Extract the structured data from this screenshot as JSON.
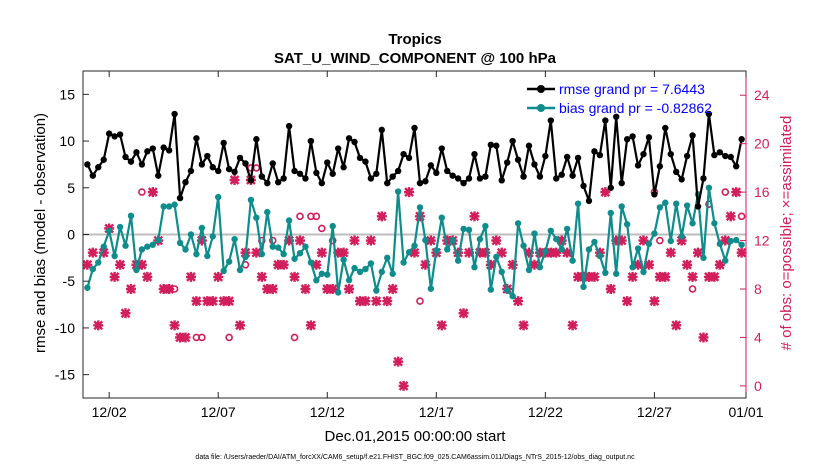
{
  "chart_data": {
    "type": "line",
    "title": "Tropics",
    "subtitle": "SAT_U_WIND_COMPONENT @ 100 hPa",
    "xlabel": "Dec.01,2015 00:00:00 start",
    "ylabel": "rmse and bias (model - observation)",
    "ylabel_right": "# of obs: o=possible; ×=assimilated",
    "footer": "data file: /Users/raeder/DAI/ATM_forcXX/CAM6_setup/f.e21.FHIST_BGC.f09_025.CAM6assim.011/Diags_NTrS_2015-12/obs_diag_output.nc",
    "xlim": [
      0.8,
      31.2
    ],
    "ylim": [
      -17.5,
      17.5
    ],
    "ylim_right": [
      -1,
      26
    ],
    "x_ticks": [
      2,
      7,
      12,
      17,
      22,
      27,
      32
    ],
    "x_tick_labels": [
      "12/02",
      "12/07",
      "12/12",
      "12/17",
      "12/22",
      "12/27",
      "01/01"
    ],
    "y_ticks": [
      -15,
      -10,
      -5,
      0,
      5,
      10,
      15
    ],
    "y_ticks_right": [
      0,
      4,
      8,
      12,
      16,
      20,
      24
    ],
    "legend": [
      {
        "label": "rmse grand pr = 7.6443",
        "color": "#000000"
      },
      {
        "label": "bias grand pr = -0.82862",
        "color": "#0f8c8c"
      }
    ],
    "legend_text_color": "#0000ff",
    "colors": {
      "rmse": "#000000",
      "bias": "#0f8c8c",
      "obs": "#d21e5a",
      "right_axis": "#d21e5a",
      "zero_line": "#bdbdbd"
    },
    "series": [
      {
        "name": "rmse",
        "x": [
          1.0,
          1.25,
          1.5,
          1.75,
          2.0,
          2.25,
          2.5,
          2.75,
          3.0,
          3.25,
          3.5,
          3.75,
          4.0,
          4.25,
          4.5,
          4.75,
          5.0,
          5.25,
          5.5,
          5.75,
          6.0,
          6.25,
          6.5,
          6.75,
          7.0,
          7.25,
          7.5,
          7.75,
          8.0,
          8.25,
          8.5,
          8.75,
          9.0,
          9.25,
          9.5,
          9.75,
          10.0,
          10.25,
          10.5,
          10.75,
          11.0,
          11.25,
          11.5,
          11.75,
          12.0,
          12.25,
          12.5,
          12.75,
          13.0,
          13.25,
          13.5,
          13.75,
          14.0,
          14.25,
          14.5,
          14.75,
          15.0,
          15.25,
          15.5,
          15.75,
          16.0,
          16.25,
          16.5,
          16.75,
          17.0,
          17.25,
          17.5,
          17.75,
          18.0,
          18.25,
          18.5,
          18.75,
          19.0,
          19.25,
          19.5,
          19.75,
          20.0,
          20.25,
          20.5,
          20.75,
          21.0,
          21.25,
          21.5,
          21.75,
          22.0,
          22.25,
          22.5,
          22.75,
          23.0,
          23.25,
          23.5,
          23.75,
          24.0,
          24.25,
          24.5,
          24.75,
          25.0,
          25.25,
          25.5,
          25.75,
          26.0,
          26.25,
          26.5,
          26.75,
          27.0,
          27.25,
          27.5,
          27.75,
          28.0,
          28.25,
          28.5,
          28.75,
          29.0,
          29.25,
          29.5,
          29.75,
          30.0,
          30.25,
          30.5,
          30.75,
          31.0
        ],
        "values": [
          7.5,
          6.3,
          7.2,
          8.0,
          10.8,
          10.5,
          10.7,
          8.3,
          7.8,
          8.8,
          7.5,
          8.9,
          9.2,
          6.3,
          9.3,
          9.0,
          12.9,
          3.9,
          5.6,
          6.8,
          10.3,
          7.5,
          8.4,
          7.2,
          6.8,
          9.8,
          7.0,
          6.7,
          8.2,
          7.6,
          5.8,
          10.2,
          6.2,
          5.5,
          7.6,
          5.6,
          6.0,
          11.6,
          6.8,
          6.5,
          6.0,
          10.0,
          6.6,
          5.5,
          7.7,
          6.5,
          9.2,
          7.2,
          10.3,
          9.9,
          8.2,
          7.8,
          6.0,
          6.5,
          11.2,
          5.5,
          6.2,
          6.8,
          8.6,
          8.2,
          11.4,
          5.5,
          5.7,
          7.4,
          6.6,
          9.2,
          6.8,
          6.3,
          6.0,
          5.5,
          6.0,
          8.6,
          6.0,
          6.2,
          9.6,
          9.5,
          5.8,
          7.7,
          10.0,
          8.0,
          6.2,
          9.5,
          7.5,
          6.2,
          8.4,
          12.2,
          6.0,
          6.4,
          8.3,
          6.3,
          8.2,
          5.2,
          3.6,
          8.9,
          8.5,
          12.2,
          5.0,
          12.6,
          5.5,
          10.2,
          10.5,
          7.4,
          8.6,
          10.4,
          4.3,
          7.3,
          11.4,
          8.6,
          6.7,
          5.9,
          8.4,
          10.6,
          3.0,
          6.0,
          12.9,
          8.5,
          8.8,
          8.4,
          8.3,
          7.3,
          10.2
        ]
      },
      {
        "name": "bias",
        "x": [
          1.0,
          1.25,
          1.5,
          1.75,
          2.0,
          2.25,
          2.5,
          2.75,
          3.0,
          3.25,
          3.5,
          3.75,
          4.0,
          4.25,
          4.5,
          4.75,
          5.0,
          5.25,
          5.5,
          5.75,
          6.0,
          6.25,
          6.5,
          6.75,
          7.0,
          7.25,
          7.5,
          7.75,
          8.0,
          8.25,
          8.5,
          8.75,
          9.0,
          9.25,
          9.5,
          9.75,
          10.0,
          10.25,
          10.5,
          10.75,
          11.0,
          11.25,
          11.5,
          11.75,
          12.0,
          12.25,
          12.5,
          12.75,
          13.0,
          13.25,
          13.5,
          13.75,
          14.0,
          14.25,
          14.5,
          14.75,
          15.0,
          15.25,
          15.5,
          15.75,
          16.0,
          16.25,
          16.5,
          16.75,
          17.0,
          17.25,
          17.5,
          17.75,
          18.0,
          18.25,
          18.5,
          18.75,
          19.0,
          19.25,
          19.5,
          19.75,
          20.0,
          20.25,
          20.5,
          20.75,
          21.0,
          21.25,
          21.5,
          21.75,
          22.0,
          22.25,
          22.5,
          22.75,
          23.0,
          23.25,
          23.5,
          23.75,
          24.0,
          24.25,
          24.5,
          24.75,
          25.0,
          25.25,
          25.5,
          25.75,
          26.0,
          26.25,
          26.5,
          26.75,
          27.0,
          27.25,
          27.5,
          27.75,
          28.0,
          28.25,
          28.5,
          28.75,
          29.0,
          29.25,
          29.5,
          29.75,
          30.0,
          30.25,
          30.5,
          30.75,
          31.0
        ],
        "values": [
          -5.7,
          -3.7,
          -3.0,
          -1.3,
          0.4,
          -2.3,
          0.8,
          -1.2,
          2.0,
          -3.8,
          -1.6,
          -1.3,
          -1.1,
          -0.6,
          3.0,
          3.0,
          3.2,
          -0.9,
          -1.6,
          0.0,
          -2.1,
          0.7,
          -2.3,
          -0.2,
          4.0,
          -3.9,
          -2.9,
          -0.5,
          -3.8,
          -2.4,
          3.7,
          1.8,
          -2.1,
          2.4,
          -1.3,
          -1.4,
          -2.1,
          1.5,
          -2.6,
          -2.0,
          -1.3,
          -3.0,
          -4.9,
          -4.2,
          -4.3,
          0.9,
          -6.2,
          -2.7,
          -4.9,
          -3.6,
          -4.0,
          -3.7,
          -3.1,
          -6.0,
          -4.0,
          -2.5,
          -4.2,
          4.6,
          -3.0,
          -1.9,
          -1.2,
          2.9,
          -0.6,
          -5.8,
          -1.7,
          1.8,
          -1.6,
          -0.6,
          -2.8,
          0.6,
          0.5,
          -3.5,
          -0.5,
          0.9,
          -5.9,
          -2.4,
          -4.0,
          -6.0,
          -6.6,
          1.2,
          -1.2,
          -3.8,
          0.1,
          -3.5,
          -1.8,
          0.4,
          -0.5,
          -1.6,
          0.6,
          -2.8,
          3.3,
          -5.6,
          -1.6,
          -0.8,
          -2.3,
          -4.1,
          2.3,
          -4.2,
          3.0,
          1.1,
          -3.5,
          -1.5,
          -4.0,
          -1.0,
          0.1,
          2.9,
          3.4,
          -0.7,
          3.3,
          -0.2,
          3.1,
          1.2,
          4.3,
          -2.5,
          5.0,
          1.2,
          -1.0,
          -2.8,
          -0.7,
          -0.6,
          -1.1
        ]
      },
      {
        "name": "obs assimilated",
        "axis": "right",
        "x": [
          1.0,
          1.25,
          1.5,
          1.75,
          2.0,
          2.25,
          2.5,
          2.75,
          3.0,
          3.25,
          3.5,
          3.75,
          4.0,
          4.25,
          4.5,
          4.75,
          5.0,
          5.25,
          5.5,
          5.75,
          6.0,
          6.25,
          6.5,
          6.75,
          7.0,
          7.25,
          7.5,
          7.75,
          8.0,
          8.25,
          8.5,
          8.75,
          9.0,
          9.25,
          9.5,
          9.75,
          10.0,
          10.25,
          10.5,
          10.75,
          11.0,
          11.25,
          11.5,
          11.75,
          12.0,
          12.25,
          12.5,
          12.75,
          13.0,
          13.25,
          13.5,
          13.75,
          14.0,
          14.25,
          14.5,
          14.75,
          15.0,
          15.25,
          15.5,
          15.75,
          16.0,
          16.25,
          16.5,
          16.75,
          17.0,
          17.25,
          17.5,
          17.75,
          18.0,
          18.25,
          18.5,
          18.75,
          19.0,
          19.25,
          19.5,
          19.75,
          20.0,
          20.25,
          20.5,
          20.75,
          21.0,
          21.25,
          21.5,
          21.75,
          22.0,
          22.25,
          22.5,
          22.75,
          23.0,
          23.25,
          23.5,
          23.75,
          24.0,
          24.25,
          24.5,
          24.75,
          25.0,
          25.25,
          25.5,
          25.75,
          26.0,
          26.25,
          26.5,
          26.75,
          27.0,
          27.25,
          27.5,
          27.75,
          28.0,
          28.25,
          28.5,
          28.75,
          29.0,
          29.25,
          29.5,
          29.75,
          30.0,
          30.25,
          30.5,
          30.75,
          31.0
        ],
        "values": [
          10,
          11,
          5,
          11,
          13,
          9,
          10,
          6,
          8,
          10,
          10,
          9,
          16,
          12,
          8,
          8,
          5,
          4,
          4,
          9,
          7,
          12,
          7,
          7,
          9,
          7,
          7,
          17,
          5,
          11,
          17,
          11,
          9,
          8,
          8,
          10,
          10,
          12,
          9,
          12,
          8,
          5,
          10,
          11,
          8,
          8,
          11,
          11,
          8,
          12,
          7,
          7,
          12,
          7,
          14,
          7,
          8,
          2,
          0,
          16,
          11,
          14,
          10,
          12,
          11,
          5,
          12,
          12,
          11,
          6,
          11,
          14,
          11,
          11,
          10,
          12,
          11,
          8,
          10,
          7,
          5,
          11,
          10,
          11,
          11,
          11,
          11,
          12,
          11,
          5,
          9,
          9,
          9,
          9,
          11,
          16,
          8,
          12,
          12,
          7,
          9,
          10,
          12,
          10,
          7,
          9,
          9,
          11,
          5,
          12,
          10,
          9,
          11,
          4,
          9,
          9,
          10,
          12,
          14,
          16,
          11
        ]
      },
      {
        "name": "obs possible (circles)",
        "axis": "right",
        "x": [
          3.5,
          4.75,
          5.0,
          6.0,
          6.25,
          7.5,
          8.25,
          8.5,
          8.75,
          9.0,
          9.5,
          10.5,
          10.75,
          11.25,
          11.5,
          11.75,
          12.25,
          16.25,
          22.75,
          27.0,
          27.25,
          28.75,
          29.5,
          30.25,
          31.0
        ],
        "values": [
          16,
          8,
          8,
          4,
          4,
          4,
          10,
          18,
          18,
          12,
          12,
          4,
          14,
          14,
          14,
          13,
          12,
          7,
          12,
          16,
          12,
          8,
          15,
          16,
          14
        ]
      }
    ]
  }
}
